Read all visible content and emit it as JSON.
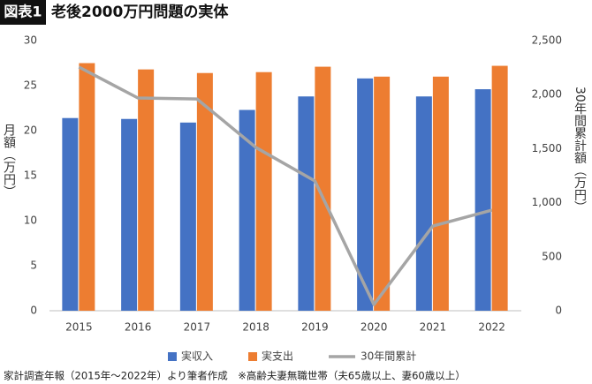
{
  "chart_data": {
    "type": "bar",
    "label": "図表1",
    "title": "老後2000万円問題の実体",
    "ylabel": "月額（万円）",
    "y2label": "30年間累計額（万円）",
    "footnote": "家計調査年報（2015年～2022年）より筆者作成　※高齢夫妻無職世帯（夫65歳以上、妻60歳以上）",
    "categories": [
      "2015",
      "2016",
      "2017",
      "2018",
      "2019",
      "2020",
      "2021",
      "2022"
    ],
    "series": [
      {
        "name": "実収入",
        "color": "#4472c4",
        "values": [
          21.4,
          21.3,
          20.9,
          22.3,
          23.8,
          25.8,
          23.8,
          24.6
        ]
      },
      {
        "name": "実支出",
        "color": "#ed7d31",
        "values": [
          27.5,
          26.8,
          26.4,
          26.5,
          27.1,
          26.0,
          26.0,
          27.2
        ]
      },
      {
        "name": "30年間累計",
        "color": "#a5a5a5",
        "type": "line",
        "axis": "y2",
        "values": [
          2255,
          1969,
          1960,
          1511,
          1201,
          57,
          784,
          931
        ]
      }
    ],
    "ylim": [
      0,
      30
    ],
    "yticks": [
      0,
      5,
      10,
      15,
      20,
      25,
      30
    ],
    "y2lim": [
      0,
      2500
    ],
    "y2ticks": [
      0,
      500,
      {
        "value": 1000,
        "label": "1,000"
      },
      {
        "value": 1500,
        "label": "1,500"
      },
      {
        "value": 2000,
        "label": "2,000"
      },
      {
        "value": 2500,
        "label": "2,500"
      }
    ],
    "grid": false,
    "legend": "bottom"
  }
}
